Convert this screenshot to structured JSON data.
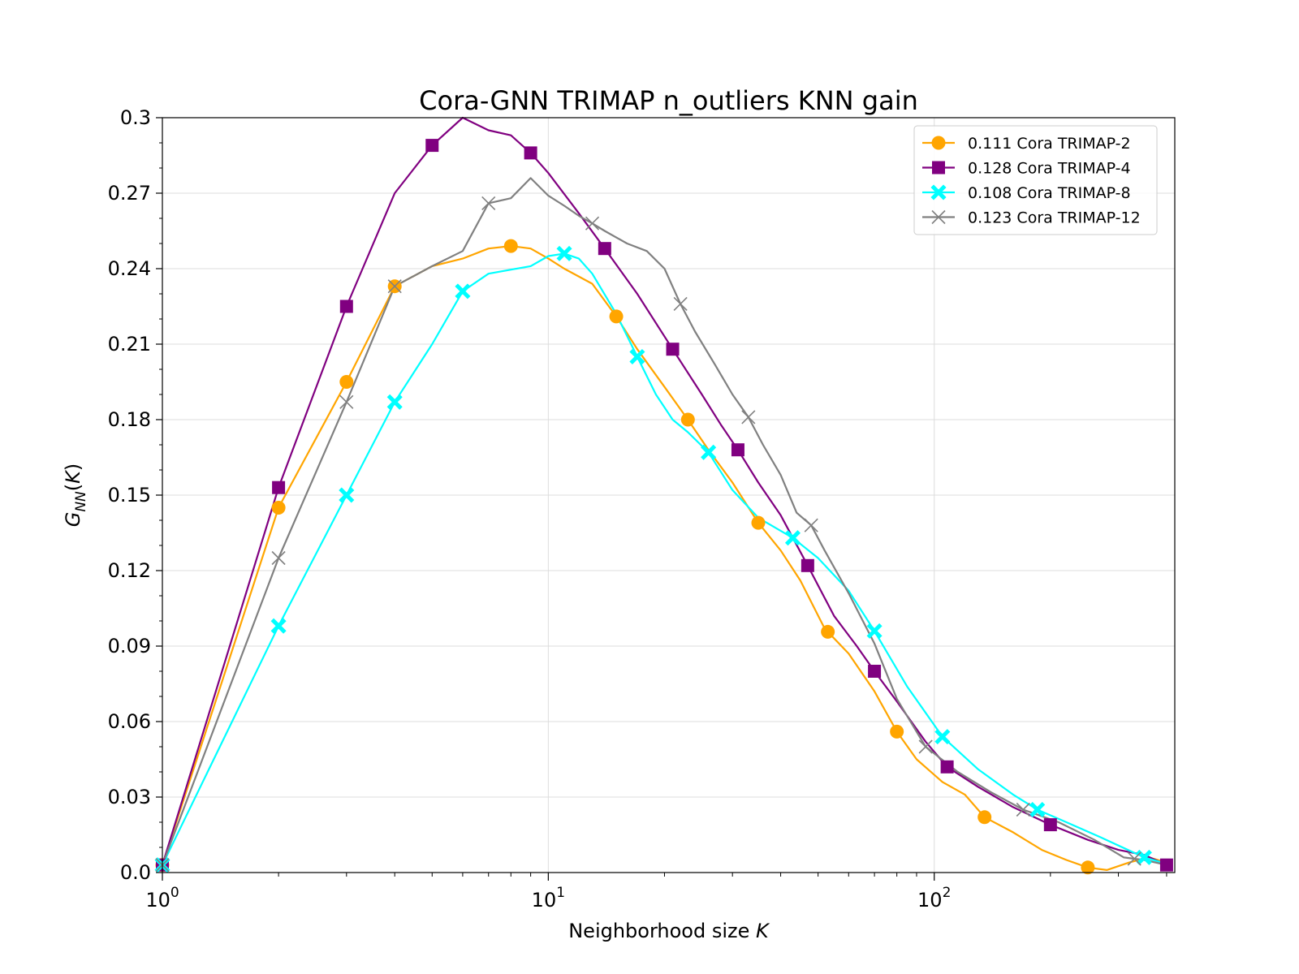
{
  "chart_data": {
    "type": "line",
    "title": "Cora-GNN TRIMAP n_outliers KNN gain",
    "xlabel": "Neighborhood size K",
    "ylabel": "G_NN(K)",
    "xscale": "log",
    "xlim": [
      1,
      420
    ],
    "ylim": [
      0,
      0.3
    ],
    "yticks": [
      0.0,
      0.03,
      0.06,
      0.09,
      0.12,
      0.15,
      0.18,
      0.21,
      0.24,
      0.27,
      0.3
    ],
    "ytick_labels": [
      "0.0",
      "0.03",
      "0.06",
      "0.09",
      "0.12",
      "0.15",
      "0.18",
      "0.21",
      "0.24",
      "0.27",
      "0.3"
    ],
    "xticks": [
      1,
      10,
      100
    ],
    "xtick_labels": [
      {
        "base": "10",
        "exp": "0"
      },
      {
        "base": "10",
        "exp": "1"
      },
      {
        "base": "10",
        "exp": "2"
      }
    ],
    "grid": true,
    "legend_position": "top-right",
    "series": [
      {
        "name": "0.111 Cora TRIMAP-2",
        "color": "#ffa500",
        "marker": "circle",
        "x": [
          1,
          2,
          3,
          4,
          5,
          6,
          7,
          8,
          9,
          10,
          11,
          13,
          15,
          17,
          20,
          23,
          26,
          30,
          35,
          40,
          45,
          52,
          60,
          70,
          80,
          90,
          105,
          120,
          135,
          160,
          190,
          220,
          250,
          280,
          320,
          360,
          400
        ],
        "y": [
          0.003,
          0.145,
          0.195,
          0.233,
          0.241,
          0.244,
          0.248,
          0.249,
          0.248,
          0.244,
          0.24,
          0.234,
          0.221,
          0.208,
          0.193,
          0.18,
          0.168,
          0.155,
          0.139,
          0.128,
          0.116,
          0.097,
          0.087,
          0.072,
          0.056,
          0.045,
          0.036,
          0.031,
          0.022,
          0.016,
          0.009,
          0.005,
          0.002,
          0.001,
          0.004,
          0.006,
          0.004
        ],
        "marker_x": [
          1,
          2,
          3,
          4,
          8,
          15,
          23,
          35,
          53,
          80,
          135,
          250
        ]
      },
      {
        "name": "0.128 Cora TRIMAP-4",
        "color": "#800080",
        "marker": "square",
        "x": [
          1,
          2,
          3,
          4,
          5,
          6,
          7,
          8,
          9,
          10,
          12,
          14,
          17,
          21,
          25,
          28,
          31,
          35,
          40,
          47,
          55,
          63,
          70,
          80,
          95,
          108,
          130,
          160,
          200,
          250,
          300,
          350,
          400
        ],
        "y": [
          0.003,
          0.153,
          0.225,
          0.27,
          0.289,
          0.3,
          0.295,
          0.293,
          0.286,
          0.278,
          0.262,
          0.248,
          0.23,
          0.208,
          0.19,
          0.178,
          0.168,
          0.155,
          0.142,
          0.122,
          0.102,
          0.09,
          0.08,
          0.068,
          0.052,
          0.042,
          0.034,
          0.026,
          0.019,
          0.013,
          0.009,
          0.007,
          0.003
        ],
        "marker_x": [
          1,
          2,
          3,
          5,
          9,
          14,
          21,
          31,
          47,
          70,
          108,
          200,
          400
        ]
      },
      {
        "name": "0.108 Cora TRIMAP-8",
        "color": "#00ffff",
        "marker": "x-thick",
        "x": [
          1,
          2,
          3,
          4,
          5,
          6,
          7,
          9,
          10,
          11,
          12,
          13,
          15,
          17,
          19,
          21,
          23,
          26,
          30,
          35,
          43,
          50,
          60,
          70,
          85,
          105,
          130,
          160,
          185,
          220,
          270,
          350,
          410
        ],
        "y": [
          0.003,
          0.098,
          0.15,
          0.187,
          0.21,
          0.231,
          0.238,
          0.241,
          0.245,
          0.246,
          0.244,
          0.238,
          0.222,
          0.205,
          0.19,
          0.18,
          0.175,
          0.167,
          0.152,
          0.141,
          0.133,
          0.125,
          0.112,
          0.096,
          0.074,
          0.054,
          0.041,
          0.031,
          0.025,
          0.02,
          0.014,
          0.006,
          0.003
        ],
        "marker_x": [
          1,
          2,
          3,
          4,
          6,
          11,
          17,
          26,
          43,
          70,
          105,
          185,
          350
        ]
      },
      {
        "name": "0.123 Cora TRIMAP-12",
        "color": "#808080",
        "marker": "x-thin",
        "x": [
          1,
          2,
          3,
          4,
          5,
          6,
          7,
          8,
          9,
          10,
          11,
          12,
          13,
          14,
          16,
          18,
          20,
          22,
          24,
          27,
          30,
          33,
          36,
          40,
          44,
          48,
          52,
          60,
          70,
          80,
          95,
          115,
          140,
          170,
          210,
          260,
          310,
          350,
          400
        ],
        "y": [
          0.003,
          0.125,
          0.187,
          0.233,
          0.241,
          0.247,
          0.266,
          0.268,
          0.276,
          0.269,
          0.265,
          0.261,
          0.258,
          0.255,
          0.25,
          0.247,
          0.24,
          0.226,
          0.215,
          0.202,
          0.19,
          0.181,
          0.17,
          0.158,
          0.143,
          0.138,
          0.128,
          0.111,
          0.091,
          0.069,
          0.05,
          0.04,
          0.032,
          0.025,
          0.02,
          0.013,
          0.006,
          0.005,
          0.003
        ],
        "marker_x": [
          1,
          2,
          3,
          4,
          7,
          13,
          22,
          33,
          48,
          95,
          170,
          330
        ]
      }
    ]
  }
}
